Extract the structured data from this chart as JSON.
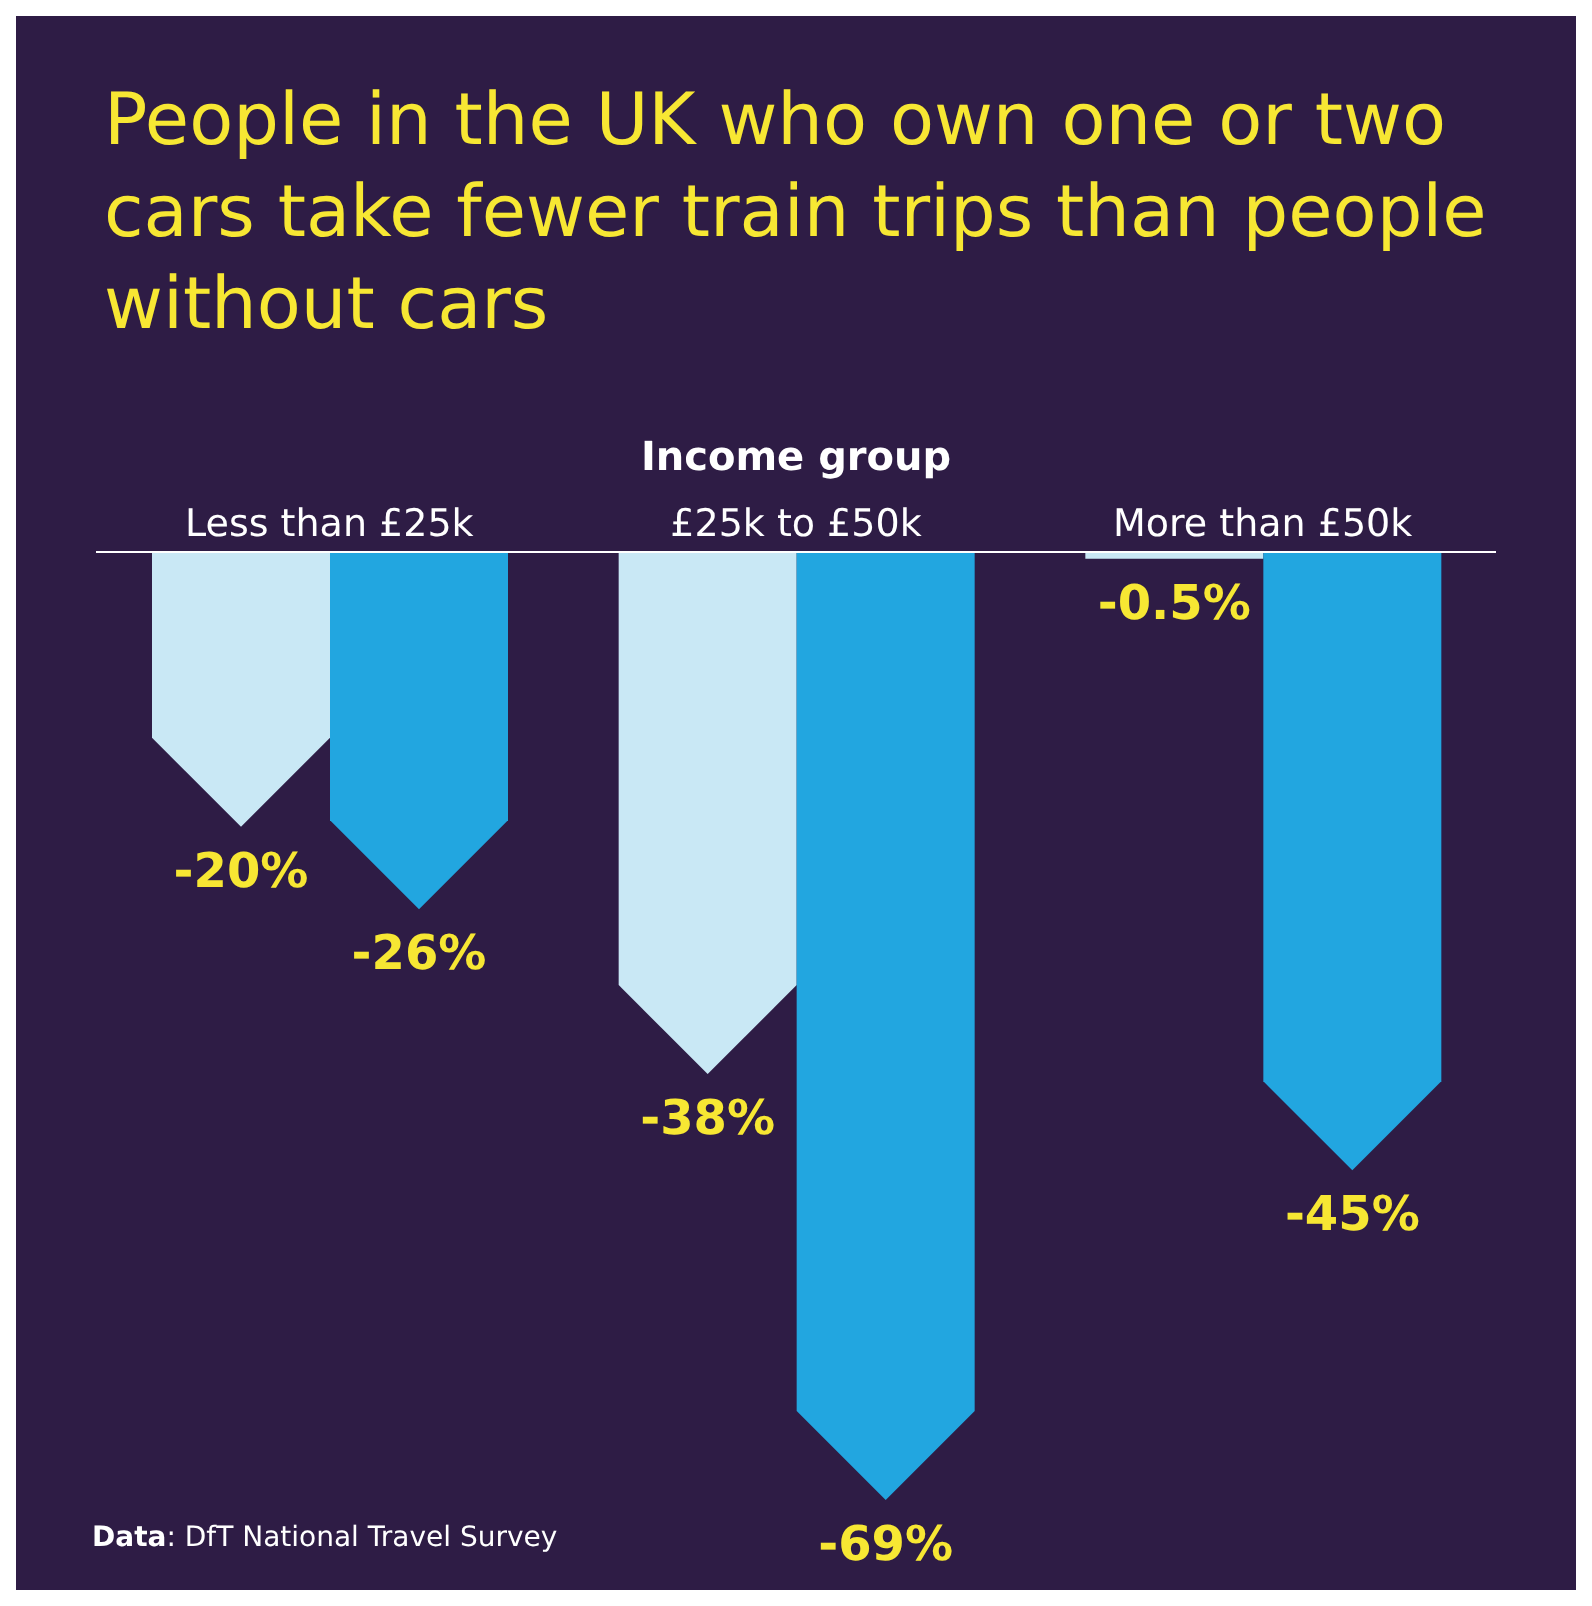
{
  "chart_data": {
    "type": "bar",
    "title": "People in the UK who own one or two cars take fewer train trips than people without cars",
    "xlabel": "Income group",
    "categories": [
      "Less than £25k",
      "£25k to £50k",
      "More than £50k"
    ],
    "series": [
      {
        "color": "#c9e8f5",
        "values": [
          -20,
          -38,
          -0.5
        ],
        "value_labels": [
          "-20%",
          "-38%",
          "-0.5%"
        ]
      },
      {
        "color": "#22a6e0",
        "values": [
          -26,
          -69,
          -45
        ],
        "value_labels": [
          "-26%",
          "-69%",
          "-45%"
        ]
      }
    ],
    "annotations": [
      "Data: DfT National Travel Survey"
    ],
    "grid": false,
    "legend": false
  }
}
